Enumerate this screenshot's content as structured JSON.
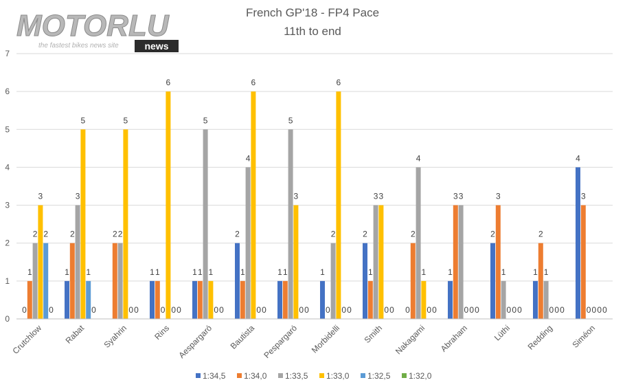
{
  "logo": {
    "word": "MOTORLU",
    "tagline": "the fastest bikes news site",
    "badge": "news"
  },
  "chart_data": {
    "type": "bar",
    "title": "French GP'18 - FP4 Pace",
    "subtitle": "11th to end",
    "xlabel": "",
    "ylabel": "",
    "ylim": [
      0,
      7
    ],
    "yticks": [
      0,
      1,
      2,
      3,
      4,
      5,
      6,
      7
    ],
    "grid": true,
    "legend_position": "bottom",
    "categories": [
      "Crutchlow",
      "Rabat",
      "Syahrin",
      "Rins",
      "Aespargaró",
      "Bautista",
      "Pespargaró",
      "Morbidelli",
      "Smith",
      "Nakagami",
      "Abraham",
      "Lüthi",
      "Redding",
      "Siméon"
    ],
    "series": [
      {
        "name": "1:34,5",
        "color": "#4472C4",
        "values": [
          0,
          1,
          null,
          1,
          1,
          2,
          1,
          1,
          2,
          0,
          1,
          2,
          1,
          4
        ]
      },
      {
        "name": "1:34,0",
        "color": "#ED7D31",
        "values": [
          1,
          2,
          2,
          1,
          1,
          1,
          1,
          0,
          1,
          2,
          3,
          3,
          2,
          3
        ]
      },
      {
        "name": "1:33,5",
        "color": "#A5A5A5",
        "values": [
          2,
          3,
          2,
          0,
          5,
          4,
          5,
          2,
          3,
          4,
          3,
          1,
          1,
          0
        ]
      },
      {
        "name": "1:33,0",
        "color": "#FFC000",
        "values": [
          3,
          5,
          5,
          6,
          1,
          6,
          3,
          6,
          3,
          1,
          0,
          0,
          0,
          0
        ]
      },
      {
        "name": "1:32,5",
        "color": "#5B9BD5",
        "values": [
          2,
          1,
          0,
          0,
          0,
          0,
          0,
          0,
          0,
          0,
          0,
          0,
          0,
          0
        ]
      },
      {
        "name": "1:32,0",
        "color": "#70AD47",
        "values": [
          0,
          0,
          0,
          0,
          0,
          0,
          0,
          0,
          0,
          0,
          0,
          0,
          0,
          0
        ]
      }
    ]
  }
}
